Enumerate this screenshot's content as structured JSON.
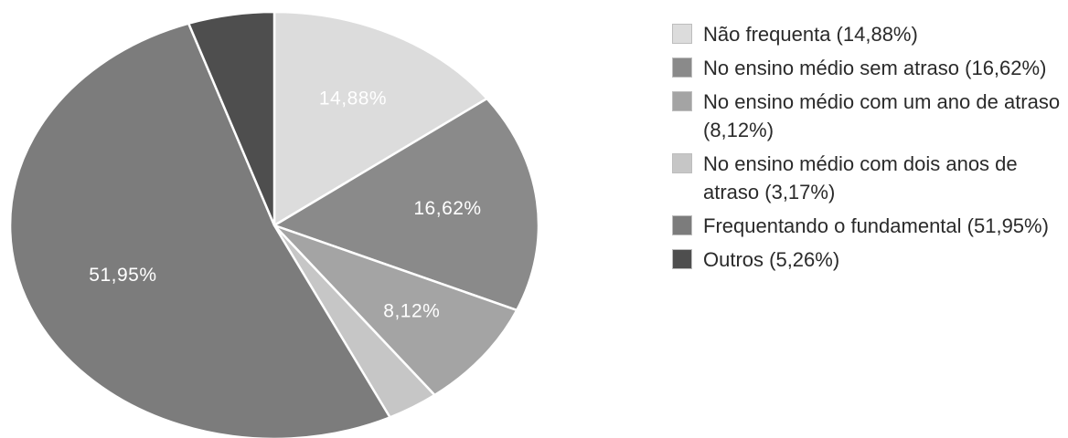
{
  "chart_data": {
    "type": "pie",
    "title": "",
    "legend_position": "right",
    "slices": [
      {
        "label": "Não frequenta",
        "value": 14.88,
        "slice_label": "14,88%",
        "legend_text": "Não frequenta (14,88%)",
        "color": "#dcdcdc"
      },
      {
        "label": "No ensino médio sem atraso",
        "value": 16.62,
        "slice_label": "16,62%",
        "legend_text": "No ensino médio sem atraso (16,62%)",
        "color": "#8a8a8a"
      },
      {
        "label": "No ensino médio com um ano de atraso",
        "value": 8.12,
        "slice_label": "8,12%",
        "legend_text": "No ensino médio com um ano de atraso (8,12%)",
        "color": "#a4a4a4"
      },
      {
        "label": "No ensino médio com dois anos de atraso",
        "value": 3.17,
        "slice_label": "",
        "legend_text": "No ensino médio com dois anos de atraso (3,17%)",
        "color": "#c6c6c6"
      },
      {
        "label": "Frequentando o fundamental",
        "value": 51.95,
        "slice_label": "51,95%",
        "legend_text": "Frequentando o fundamental (51,95%)",
        "color": "#7c7c7c"
      },
      {
        "label": "Outros",
        "value": 5.26,
        "slice_label": "",
        "legend_text": "Outros (5,26%)",
        "color": "#4e4e4e"
      }
    ]
  }
}
